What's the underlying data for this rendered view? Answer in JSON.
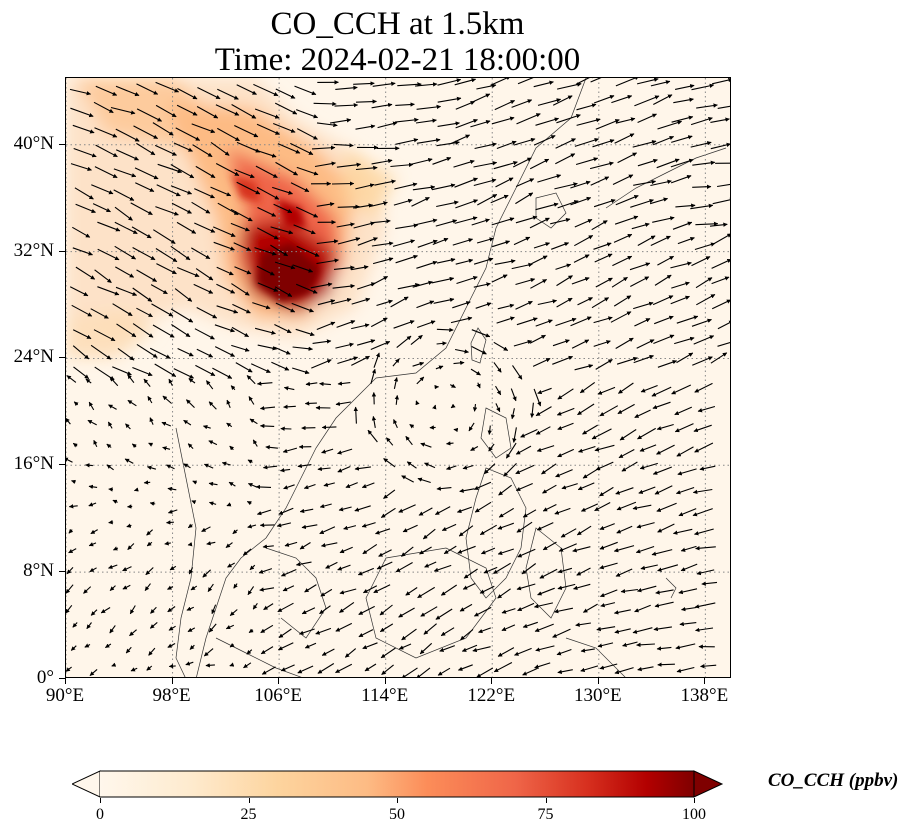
{
  "figure": {
    "title_line1": "CO_CCH at 1.5km",
    "title_line2": "Time: 2024-02-21 18:00:00"
  },
  "map": {
    "projection": "PlateCarree",
    "lon_range": [
      90,
      140
    ],
    "lat_range": [
      0,
      45
    ],
    "gridlines": "dotted",
    "coastlines": true,
    "field": "CO_CCH",
    "vectors": "wind arrows"
  },
  "axes": {
    "yticks": [
      {
        "label": "40°N",
        "lat": 40
      },
      {
        "label": "32°N",
        "lat": 32
      },
      {
        "label": "24°N",
        "lat": 24
      },
      {
        "label": "16°N",
        "lat": 16
      },
      {
        "label": "8°N",
        "lat": 8
      },
      {
        "label": "0°",
        "lat": 0
      }
    ],
    "xticks": [
      {
        "label": "90°E",
        "lon": 90
      },
      {
        "label": "98°E",
        "lon": 98
      },
      {
        "label": "106°E",
        "lon": 106
      },
      {
        "label": "114°E",
        "lon": 114
      },
      {
        "label": "122°E",
        "lon": 122
      },
      {
        "label": "130°E",
        "lon": 130
      },
      {
        "label": "138°E",
        "lon": 138
      }
    ]
  },
  "colorbar": {
    "label": "CO_CCH (ppbv)",
    "range": [
      0,
      100
    ],
    "extend": "both",
    "colormap": "OrRd",
    "ticks": [
      {
        "label": "0",
        "value": 0
      },
      {
        "label": "25",
        "value": 25
      },
      {
        "label": "50",
        "value": 50
      },
      {
        "label": "75",
        "value": 75
      },
      {
        "label": "100",
        "value": 100
      }
    ]
  },
  "colors": {
    "low": "#fff7ec",
    "mid_low": "#fdd49e",
    "mid": "#fc8d59",
    "mid_high": "#d7301f",
    "high": "#7f0000"
  }
}
